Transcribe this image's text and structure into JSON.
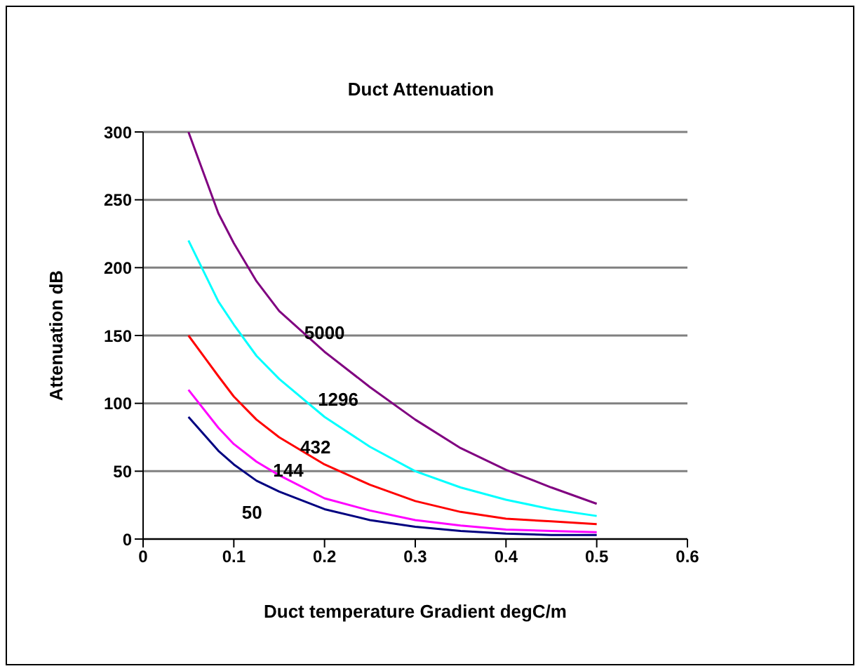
{
  "chart_data": {
    "type": "line",
    "title": "Duct Attenuation",
    "xlabel": "Duct temperature Gradient degC/m",
    "ylabel": "Attenuation dB",
    "x": [
      0.05,
      0.083,
      0.1,
      0.125,
      0.15,
      0.2,
      0.25,
      0.3,
      0.35,
      0.4,
      0.45,
      0.5
    ],
    "series": [
      {
        "name": "5000",
        "color": "#800080",
        "values": [
          300,
          240,
          218,
          190,
          168,
          138,
          112,
          88,
          67,
          51,
          38,
          26
        ]
      },
      {
        "name": "1296",
        "color": "#00ffff",
        "values": [
          220,
          175,
          158,
          135,
          118,
          90,
          68,
          50,
          38,
          29,
          22,
          17
        ]
      },
      {
        "name": "432",
        "color": "#ff0000",
        "values": [
          150,
          120,
          105,
          88,
          75,
          55,
          40,
          28,
          20,
          15,
          13,
          11
        ]
      },
      {
        "name": "144",
        "color": "#ff00ff",
        "values": [
          110,
          82,
          70,
          57,
          47,
          30,
          21,
          14,
          10,
          7,
          6,
          5
        ]
      },
      {
        "name": "50",
        "color": "#000080",
        "values": [
          90,
          65,
          55,
          43,
          35,
          22,
          14,
          9,
          6,
          4,
          3,
          3
        ]
      }
    ],
    "xlim": [
      0,
      0.6
    ],
    "xticks": [
      0,
      0.1,
      0.2,
      0.3,
      0.4,
      0.5,
      0.6
    ],
    "ylim": [
      0,
      300
    ],
    "yticks": [
      0,
      50,
      100,
      150,
      200,
      250,
      300
    ],
    "grid": "y",
    "marker": "none",
    "line_style": "solid"
  }
}
